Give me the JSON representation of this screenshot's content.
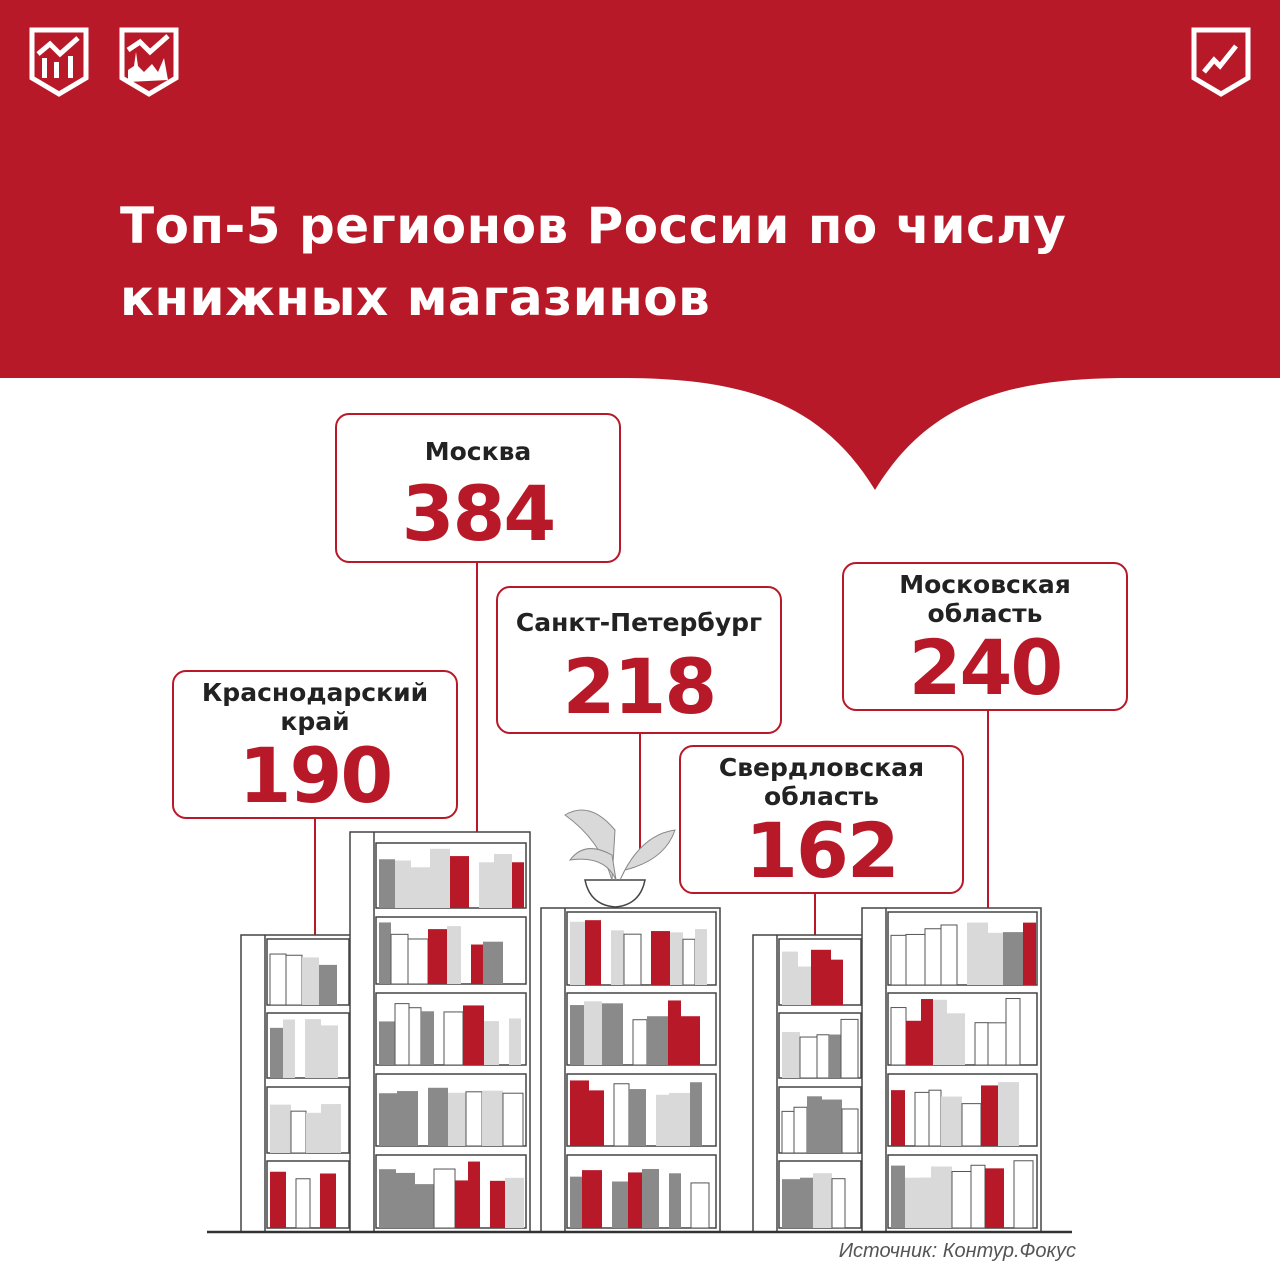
{
  "header": {
    "title_line1": "Топ-5 регионов России по числу",
    "title_line2": "книжных магазинов"
  },
  "logos": [
    "chart-shield-logo",
    "kremlin-chart-shield-logo",
    "growth-chart-shield-logo"
  ],
  "colors": {
    "brand": "#b81928",
    "book_gray": "#8a8a8a",
    "book_light": "#d9d9d9"
  },
  "chart_data": {
    "type": "bar",
    "title": "Топ-5 регионов России по числу книжных магазинов",
    "categories": [
      "Краснодарский край",
      "Москва",
      "Санкт-Петербург",
      "Свердловская область",
      "Московская область"
    ],
    "values": [
      190,
      384,
      218,
      162,
      240
    ]
  },
  "cards": [
    {
      "name": "Москва",
      "value": "384"
    },
    {
      "name": "Санкт-Петербург",
      "value": "218"
    },
    {
      "name": "Московская область",
      "value": "240"
    },
    {
      "name": "Краснодарский край",
      "value": "190"
    },
    {
      "name": "Свердловская область",
      "value": "162"
    }
  ],
  "source": "Источник: Контур.Фокус"
}
